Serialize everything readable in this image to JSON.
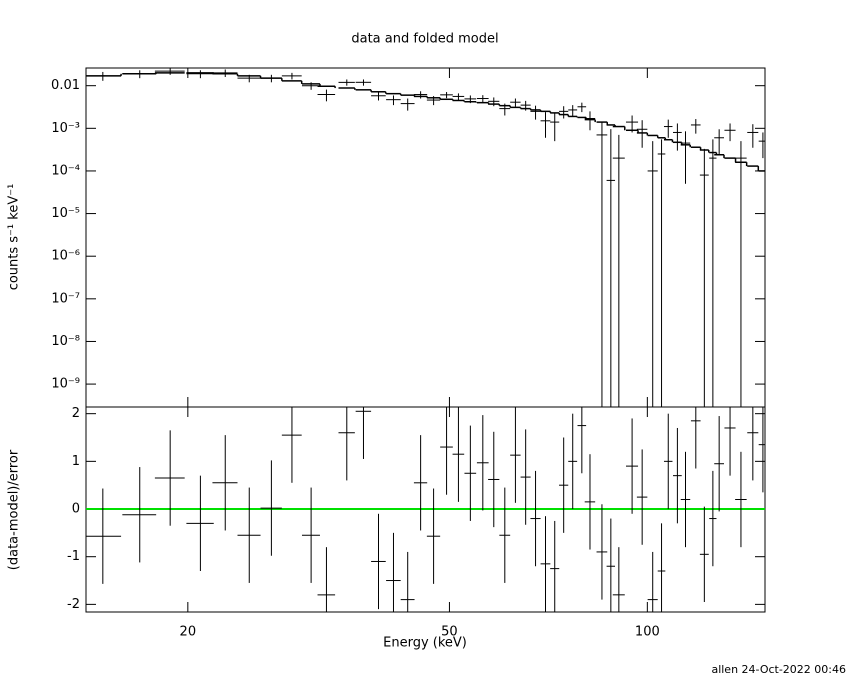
{
  "chart_data": [
    {
      "type": "errorbar",
      "title": "data and folded model",
      "y_label": "counts s⁻¹ keV⁻¹",
      "log_x": true,
      "log_y": true,
      "xlim": [
        14,
        151
      ],
      "ylim": [
        2.9e-10,
        0.026
      ],
      "xticks": [
        20,
        50,
        100
      ],
      "show_xtick_labels": false,
      "yticks": [
        {
          "value": 1e-09,
          "label": "10⁻⁹"
        },
        {
          "value": 1e-08,
          "label": "10⁻⁸"
        },
        {
          "value": 1e-07,
          "label": "10⁻⁷"
        },
        {
          "value": 1e-06,
          "label": "10⁻⁶"
        },
        {
          "value": 1e-05,
          "label": "10⁻⁵"
        },
        {
          "value": 0.0001,
          "label": "10⁻⁴"
        },
        {
          "value": 0.001,
          "label": "10⁻³"
        },
        0.01
      ],
      "x": [
        14.85,
        16.9,
        18.8,
        20.9,
        22.8,
        24.8,
        26.8,
        28.8,
        30.8,
        32.5,
        34.9,
        37.0,
        39.0,
        41.1,
        43.2,
        45.2,
        47.3,
        49.5,
        51.6,
        53.8,
        56.2,
        58.4,
        60.7,
        63.0,
        65.3,
        67.6,
        70.0,
        72.3,
        74.6,
        77.0,
        79.5,
        81.8,
        85.3,
        88.0,
        90.5,
        94.8,
        98.2,
        101.9,
        105.1,
        107.6,
        111.1,
        114.3,
        118.5,
        122.1,
        125.8,
        128.6,
        133.6,
        138.8,
        144.7,
        149.9
      ],
      "x_err": [
        0.98,
        1.0,
        0.98,
        1.0,
        1.0,
        1.0,
        1.0,
        1.0,
        0.97,
        1.0,
        1.0,
        1.0,
        1.0,
        1.05,
        1.05,
        1.05,
        1.1,
        1.1,
        1.05,
        1.1,
        1.15,
        1.15,
        1.15,
        1.15,
        1.15,
        1.2,
        1.2,
        1.15,
        1.2,
        1.2,
        1.2,
        1.5,
        1.6,
        1.3,
        1.9,
        2.0,
        1.8,
        1.8,
        1.4,
        1.6,
        1.7,
        1.9,
        2.0,
        1.9,
        1.6,
        2.2,
        2.6,
        2.8,
        2.8,
        2.2
      ],
      "data": {
        "color": "#000000",
        "values": [
          0.017,
          0.019,
          0.022,
          0.019,
          0.02,
          0.015,
          0.015,
          0.017,
          0.01,
          0.0062,
          0.012,
          0.012,
          0.0058,
          0.0047,
          0.0038,
          0.0062,
          0.0046,
          0.0061,
          0.0056,
          0.0049,
          0.005,
          0.0043,
          0.0029,
          0.0041,
          0.0035,
          0.0025,
          0.0015,
          0.0014,
          0.0025,
          0.0027,
          0.0032,
          0.0017,
          0.0007,
          6e-05,
          0.0002,
          0.0014,
          0.00095,
          0.0001,
          0.00025,
          0.0011,
          0.0008,
          0.00045,
          0.0012,
          8e-05,
          0.0002,
          0.0006,
          0.0009,
          0.0002,
          0.0008,
          0.0005
        ],
        "errors": [
          0.004,
          0.004,
          0.004,
          0.004,
          0.004,
          0.003,
          0.003,
          0.003,
          0.002,
          0.0019,
          0.002,
          0.002,
          0.0013,
          0.0012,
          0.0012,
          0.0012,
          0.0011,
          0.001,
          0.001,
          0.001,
          0.001,
          0.001,
          0.0009,
          0.0009,
          0.0009,
          0.0009,
          0.0009,
          0.0009,
          0.0008,
          0.0008,
          0.0008,
          0.0008,
          0.00075,
          0.0009,
          0.0005,
          0.0006,
          0.0006,
          0.0004,
          0.0003,
          0.0005,
          0.0005,
          0.0004,
          0.00045,
          0.00025,
          0.00035,
          0.00035,
          0.0004,
          0.0003,
          0.00045,
          0.0003
        ]
      },
      "model": {
        "color": "#000000",
        "values": [
          0.017,
          0.019,
          0.02,
          0.02,
          0.019,
          0.017,
          0.015,
          0.013,
          0.011,
          0.0097,
          0.0088,
          0.008,
          0.0072,
          0.0065,
          0.006,
          0.0056,
          0.0052,
          0.0048,
          0.0045,
          0.0042,
          0.004,
          0.0037,
          0.0034,
          0.0031,
          0.0029,
          0.0027,
          0.0025,
          0.0023,
          0.0021,
          0.0019,
          0.0018,
          0.0016,
          0.0014,
          0.0012,
          0.0011,
          0.0009,
          0.00078,
          0.00068,
          0.0006,
          0.00054,
          0.00047,
          0.00041,
          0.00036,
          0.00031,
          0.00027,
          0.00024,
          0.0002,
          0.00016,
          0.00013,
          0.0001
        ]
      }
    },
    {
      "type": "errorbar",
      "y_label": "(data-model)/error",
      "x_label": "Energy (keV)",
      "log_x": true,
      "log_y": false,
      "xlim": [
        14,
        151
      ],
      "ylim": [
        -2.16,
        2.14
      ],
      "xticks": [
        20,
        50,
        100
      ],
      "show_xtick_labels": true,
      "yticks": [
        -2,
        -1,
        0,
        1,
        2
      ],
      "reference_line": {
        "value": 0,
        "color": "#00e000"
      },
      "x": [
        14.85,
        16.9,
        18.8,
        20.9,
        22.8,
        24.8,
        26.8,
        28.8,
        30.8,
        32.5,
        34.9,
        37.0,
        39.0,
        41.1,
        43.2,
        45.2,
        47.3,
        49.5,
        51.6,
        53.8,
        56.2,
        58.4,
        60.7,
        63.0,
        65.3,
        67.6,
        70.0,
        72.3,
        74.6,
        77.0,
        79.5,
        81.8,
        85.3,
        88.0,
        90.5,
        94.8,
        98.2,
        101.9,
        105.1,
        107.6,
        111.1,
        114.3,
        118.5,
        122.1,
        125.8,
        128.6,
        133.6,
        138.8,
        144.7,
        149.9
      ],
      "x_err": [
        0.98,
        1.0,
        0.98,
        1.0,
        1.0,
        1.0,
        1.0,
        1.0,
        0.97,
        1.0,
        1.0,
        1.0,
        1.0,
        1.05,
        1.05,
        1.05,
        1.1,
        1.1,
        1.05,
        1.1,
        1.15,
        1.15,
        1.15,
        1.15,
        1.15,
        1.2,
        1.2,
        1.15,
        1.2,
        1.2,
        1.2,
        1.5,
        1.6,
        1.3,
        1.9,
        2.0,
        1.8,
        1.8,
        1.4,
        1.6,
        1.7,
        1.9,
        2.0,
        1.9,
        1.6,
        2.2,
        2.6,
        2.8,
        2.8,
        2.2
      ],
      "data": {
        "color": "#000000",
        "values": [
          -0.57,
          -0.12,
          0.65,
          -0.3,
          0.55,
          -0.55,
          0.02,
          1.55,
          -0.55,
          -1.8,
          1.6,
          2.05,
          -1.1,
          -1.5,
          -1.9,
          0.55,
          -0.57,
          1.3,
          1.15,
          0.75,
          0.97,
          0.62,
          -0.55,
          1.13,
          0.67,
          -0.2,
          -1.15,
          -1.25,
          0.5,
          1.0,
          1.75,
          0.15,
          -0.9,
          -1.2,
          -1.8,
          0.9,
          0.25,
          -1.9,
          -1.3,
          1.0,
          0.7,
          0.2,
          1.85,
          -0.95,
          -0.2,
          0.95,
          1.7,
          0.2,
          1.6,
          1.35
        ],
        "errors": [
          1,
          1,
          1,
          1,
          1,
          1,
          1,
          1,
          1,
          1,
          1,
          1,
          1,
          1,
          1,
          1,
          1,
          1,
          1,
          1,
          1,
          1,
          1,
          1,
          1,
          1,
          1,
          1,
          1,
          1,
          1,
          1,
          1,
          1,
          1,
          1,
          1,
          1,
          1,
          1,
          1,
          1,
          1,
          1,
          1,
          1,
          1,
          1,
          1,
          1
        ]
      }
    }
  ],
  "footer": "allen 24-Oct-2022 00:46"
}
